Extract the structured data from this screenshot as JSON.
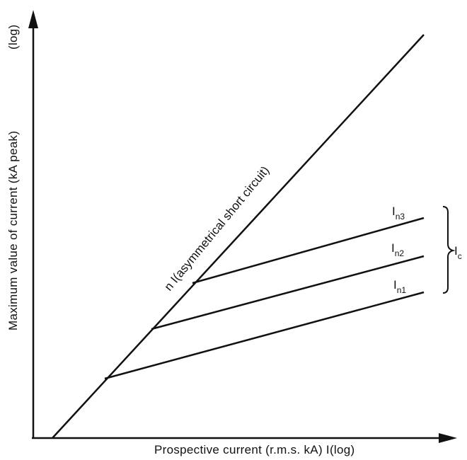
{
  "chart_data": {
    "type": "line",
    "title": "",
    "xlabel": "Prospective current (r.m.s. kA) I",
    "xlabel_suffix": "(log)",
    "ylabel": "Maximum value of current (kA peak)",
    "ylabel_suffix": "(log)",
    "x_scale": "log",
    "y_scale": "log",
    "grid": false,
    "legend": "none",
    "series": [
      {
        "name": "n I (asymmetrical short circuit)",
        "label": "n I(asymmetrical short circuit)",
        "style": "straight line from origin"
      },
      {
        "name": "In1",
        "label_main": "I",
        "label_sub": "n1",
        "style": "branches off main line, lowest cut-off"
      },
      {
        "name": "In2",
        "label_main": "I",
        "label_sub": "n2",
        "style": "branches off main line, middle cut-off"
      },
      {
        "name": "In3",
        "label_main": "I",
        "label_sub": "n3",
        "style": "branches off main line, highest cut-off"
      }
    ],
    "brace_label": {
      "main": "I",
      "sub": "c"
    },
    "colors": {
      "line": "#111111",
      "background": "#ffffff"
    }
  }
}
